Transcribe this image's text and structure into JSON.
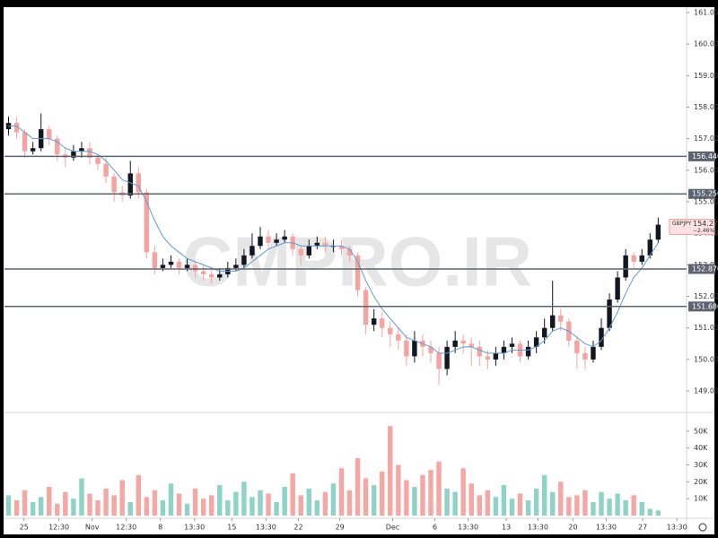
{
  "chart_data": {
    "type": "candlestick",
    "symbol": "GBPJPY",
    "last_price": 154.274,
    "change_label": "−2.46%",
    "watermark": "CMPRO.IR",
    "up_color": "#131722",
    "down_color": "#f4a3a1",
    "volume_up_color": "#8fd3c8",
    "volume_down_color": "#f5a7a4",
    "xlim": [
      0,
      84
    ],
    "xticks": [
      {
        "value": 2.4,
        "label": "25"
      },
      {
        "value": 6.7,
        "label": "12:30"
      },
      {
        "value": 10.8,
        "label": "Nov"
      },
      {
        "value": 15,
        "label": "12:30"
      },
      {
        "value": 19.2,
        "label": "8"
      },
      {
        "value": 23.4,
        "label": "13:30"
      },
      {
        "value": 28,
        "label": "15"
      },
      {
        "value": 32.2,
        "label": "13:30"
      },
      {
        "value": 36.2,
        "label": "22"
      },
      {
        "value": 41.3,
        "label": "29"
      },
      {
        "value": 47.8,
        "label": "Dec"
      },
      {
        "value": 53,
        "label": "6"
      },
      {
        "value": 57.1,
        "label": "13:30"
      },
      {
        "value": 61.8,
        "label": "13"
      },
      {
        "value": 65.7,
        "label": "13:30"
      },
      {
        "value": 70,
        "label": "20"
      },
      {
        "value": 74.1,
        "label": "13:30"
      },
      {
        "value": 78.6,
        "label": "27"
      },
      {
        "value": 82.8,
        "label": "13:30"
      }
    ],
    "ylim": [
      148.32,
      161.17
    ],
    "yticks": [
      {
        "value": 149,
        "label": "149.000"
      },
      {
        "value": 150,
        "label": "150.000"
      },
      {
        "value": 151,
        "label": "151.000"
      },
      {
        "value": 152,
        "label": "152.000"
      },
      {
        "value": 153,
        "label": "153.000"
      },
      {
        "value": 154,
        "label": "154.000"
      },
      {
        "value": 155,
        "label": "155.000"
      },
      {
        "value": 156,
        "label": "156.000"
      },
      {
        "value": 157,
        "label": "157.000"
      },
      {
        "value": 158,
        "label": "158.000"
      },
      {
        "value": 159,
        "label": "159.000"
      },
      {
        "value": 160,
        "label": "160.000"
      },
      {
        "value": 161,
        "label": "161.000"
      }
    ],
    "levels": [
      {
        "value": 156.44,
        "label": "156.440"
      },
      {
        "value": 155.25,
        "label": "155.250"
      },
      {
        "value": 152.87,
        "label": "152.870"
      },
      {
        "value": 151.68,
        "label": "151.680"
      }
    ],
    "open": [
      157.3,
      157.5,
      157.2,
      156.6,
      156.7,
      157.3,
      157.0,
      156.5,
      156.4,
      156.6,
      156.7,
      156.4,
      156.2,
      155.8,
      155.3,
      155.2,
      155.9,
      155.3,
      153.4,
      152.9,
      153.0,
      153.1,
      152.9,
      153.0,
      152.8,
      152.7,
      152.6,
      152.7,
      152.9,
      153.0,
      153.3,
      153.6,
      153.9,
      153.7,
      153.8,
      153.9,
      153.5,
      153.3,
      153.6,
      153.7,
      153.6,
      153.6,
      153.5,
      153.3,
      152.2,
      151.1,
      151.3,
      151.0,
      150.8,
      150.6,
      150.1,
      150.6,
      150.4,
      150.2,
      149.7,
      150.4,
      150.6,
      150.5,
      150.4,
      150.1,
      150.0,
      150.2,
      150.4,
      150.5,
      150.1,
      150.4,
      150.7,
      151.0,
      151.4,
      151.2,
      150.6,
      150.2,
      150.0,
      150.4,
      151.0,
      151.9,
      152.6,
      153.3,
      153.1,
      153.3,
      153.8
    ],
    "high": [
      157.7,
      157.7,
      157.3,
      156.9,
      157.8,
      157.4,
      157.1,
      156.7,
      156.8,
      156.9,
      156.9,
      156.5,
      156.4,
      155.9,
      155.5,
      156.3,
      156.1,
      155.4,
      153.6,
      153.2,
      153.3,
      153.2,
      153.2,
      153.1,
      153.0,
      152.9,
      152.9,
      153.1,
      153.2,
      153.5,
      154.0,
      154.2,
      154.1,
      154.0,
      154.1,
      154.0,
      153.6,
      153.8,
      153.9,
      153.9,
      153.8,
      153.8,
      153.6,
      153.4,
      152.3,
      151.6,
      151.5,
      151.2,
      151.0,
      150.8,
      150.9,
      150.8,
      150.6,
      150.4,
      150.6,
      150.9,
      150.8,
      150.7,
      150.6,
      150.3,
      150.4,
      150.6,
      150.7,
      150.6,
      150.6,
      150.9,
      151.3,
      152.5,
      151.6,
      151.3,
      150.7,
      150.4,
      150.6,
      151.3,
      152.1,
      152.8,
      153.5,
      153.4,
      153.5,
      154.0,
      154.5
    ],
    "low": [
      157.1,
      157.0,
      156.4,
      156.5,
      156.6,
      156.8,
      156.3,
      156.1,
      156.3,
      156.4,
      156.2,
      156.0,
      155.6,
      155.0,
      155.0,
      155.1,
      155.1,
      153.2,
      152.7,
      152.8,
      152.9,
      152.7,
      152.8,
      152.6,
      152.5,
      152.4,
      152.5,
      152.6,
      152.8,
      152.9,
      153.2,
      153.5,
      153.5,
      153.6,
      153.7,
      153.3,
      153.0,
      153.2,
      153.5,
      153.4,
      153.4,
      153.3,
      153.1,
      152.0,
      150.8,
      150.9,
      150.7,
      150.4,
      150.3,
      149.8,
      149.9,
      150.1,
      149.9,
      149.2,
      149.5,
      150.2,
      150.2,
      149.8,
      149.8,
      149.7,
      149.8,
      150.0,
      150.2,
      149.9,
      150.0,
      150.2,
      150.5,
      150.9,
      150.9,
      150.4,
      149.7,
      149.7,
      149.9,
      150.3,
      150.9,
      151.8,
      152.5,
      152.9,
      153.0,
      153.2,
      153.7
    ],
    "close": [
      157.5,
      157.2,
      156.6,
      156.7,
      157.3,
      157.0,
      156.5,
      156.4,
      156.6,
      156.7,
      156.4,
      156.2,
      155.8,
      155.3,
      155.2,
      155.9,
      155.3,
      153.4,
      152.9,
      153.0,
      153.1,
      152.9,
      153.0,
      152.8,
      152.7,
      152.6,
      152.7,
      152.9,
      153.0,
      153.3,
      153.6,
      153.9,
      153.7,
      153.8,
      153.9,
      153.5,
      153.3,
      153.6,
      153.7,
      153.6,
      153.6,
      153.5,
      153.3,
      152.2,
      151.1,
      151.3,
      151.0,
      150.8,
      150.6,
      150.1,
      150.6,
      150.4,
      150.2,
      149.7,
      150.4,
      150.6,
      150.5,
      150.4,
      150.1,
      150.0,
      150.2,
      150.4,
      150.5,
      150.1,
      150.4,
      150.7,
      151.0,
      151.4,
      151.2,
      150.6,
      150.2,
      150.0,
      150.4,
      151.0,
      151.9,
      152.6,
      153.3,
      153.1,
      153.3,
      153.8,
      154.274
    ],
    "ma": {
      "color": "#5b9bd5",
      "values": [
        157.4,
        157.4,
        157.2,
        157.0,
        157.0,
        157.0,
        156.9,
        156.7,
        156.6,
        156.6,
        156.6,
        156.5,
        156.3,
        156.0,
        155.7,
        155.6,
        155.5,
        155.0,
        154.4,
        153.9,
        153.6,
        153.4,
        153.2,
        153.1,
        153.0,
        152.9,
        152.8,
        152.8,
        152.8,
        152.9,
        153.1,
        153.3,
        153.5,
        153.6,
        153.7,
        153.7,
        153.6,
        153.6,
        153.6,
        153.6,
        153.6,
        153.6,
        153.5,
        153.1,
        152.5,
        152.0,
        151.6,
        151.3,
        151.0,
        150.7,
        150.6,
        150.5,
        150.4,
        150.2,
        150.2,
        150.3,
        150.4,
        150.4,
        150.3,
        150.2,
        150.2,
        150.2,
        150.3,
        150.3,
        150.3,
        150.4,
        150.6,
        150.9,
        151.0,
        150.9,
        150.7,
        150.5,
        150.4,
        150.6,
        151.0,
        151.5,
        152.1,
        152.6,
        152.9,
        153.3,
        153.7
      ]
    },
    "volume": {
      "ylim": [
        0,
        60000
      ],
      "yticks": [
        {
          "value": 10000,
          "label": "10K"
        },
        {
          "value": 20000,
          "label": "20K"
        },
        {
          "value": 30000,
          "label": "30K"
        },
        {
          "value": 40000,
          "label": "40K"
        },
        {
          "value": 50000,
          "label": "50K"
        }
      ],
      "values": [
        12000,
        9000,
        15000,
        8000,
        11000,
        17000,
        7000,
        14000,
        10000,
        22000,
        13000,
        9000,
        16000,
        12000,
        21000,
        8000,
        24000,
        11000,
        15000,
        9000,
        19000,
        13000,
        7000,
        16000,
        10000,
        12000,
        18000,
        9000,
        14000,
        20000,
        11000,
        15000,
        13000,
        8000,
        17000,
        25000,
        12000,
        16000,
        9000,
        14000,
        19000,
        28000,
        15000,
        34000,
        22000,
        18000,
        26000,
        53000,
        30000,
        21000,
        17000,
        24000,
        27000,
        32000,
        16000,
        14000,
        28000,
        19000,
        12000,
        15000,
        11000,
        18000,
        10000,
        13000,
        9000,
        16000,
        24000,
        14000,
        20000,
        11000,
        12000,
        15000,
        8000,
        14000,
        10000,
        13000,
        9000,
        12000,
        8000,
        4000,
        3000
      ]
    }
  }
}
